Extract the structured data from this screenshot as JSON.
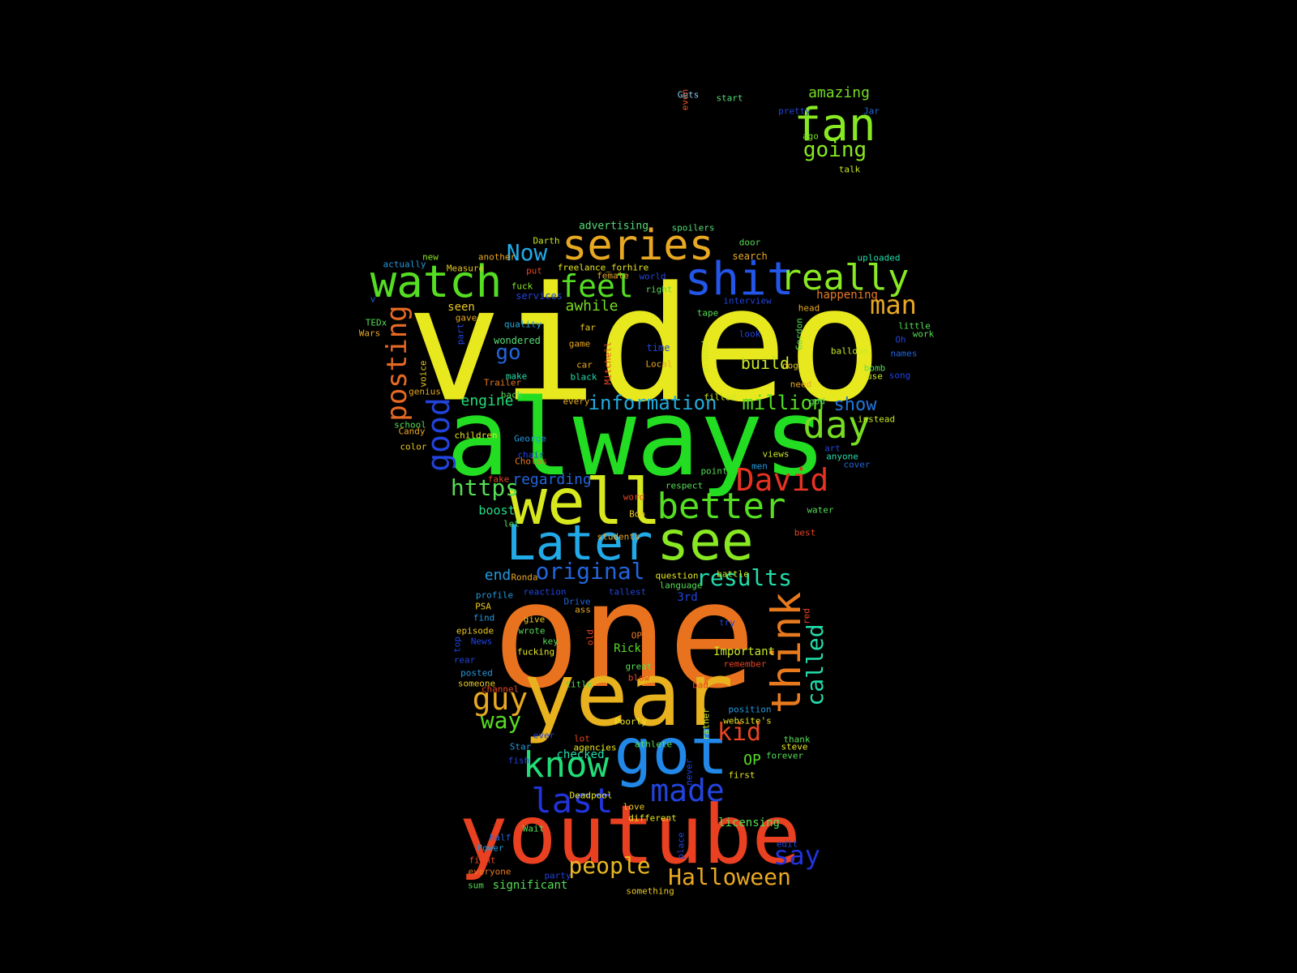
{
  "word_cloud": {
    "words": [
      {
        "text": "video",
        "color": "#e8e81e"
      },
      {
        "text": "always",
        "color": "#22dd22"
      },
      {
        "text": "one",
        "color": "#e8721e"
      },
      {
        "text": "year",
        "color": "#e8b21e"
      },
      {
        "text": "youtube",
        "color": "#e84020"
      },
      {
        "text": "got",
        "color": "#2288e8"
      },
      {
        "text": "well",
        "color": "#d8e81e"
      },
      {
        "text": "Later",
        "color": "#22aae8"
      },
      {
        "text": "see",
        "color": "#88e822"
      },
      {
        "text": "series",
        "color": "#e8a822"
      },
      {
        "text": "shit",
        "color": "#2255e8"
      },
      {
        "text": "really",
        "color": "#88e822"
      },
      {
        "text": "watch",
        "color": "#55dd22"
      },
      {
        "text": "fan",
        "color": "#88e822"
      },
      {
        "text": "think",
        "color": "#e87a1e"
      },
      {
        "text": "know",
        "color": "#22dd77"
      },
      {
        "text": "better",
        "color": "#55dd22"
      },
      {
        "text": "David",
        "color": "#e83322"
      },
      {
        "text": "day",
        "color": "#77dd22"
      },
      {
        "text": "good",
        "color": "#2244dd"
      },
      {
        "text": "last",
        "color": "#2233dd"
      },
      {
        "text": "made",
        "color": "#2244dd"
      },
      {
        "text": "guy",
        "color": "#e8a822"
      },
      {
        "text": "posting",
        "color": "#e86a22"
      },
      {
        "text": "feel",
        "color": "#55dd22"
      },
      {
        "text": "man",
        "color": "#e8a822"
      },
      {
        "text": "Halloween",
        "color": "#e8a822"
      },
      {
        "text": "people",
        "color": "#e8b822"
      },
      {
        "text": "say",
        "color": "#2233dd"
      },
      {
        "text": "kid",
        "color": "#e84422"
      },
      {
        "text": "called",
        "color": "#22ddaa"
      },
      {
        "text": "original",
        "color": "#2266dd"
      },
      {
        "text": "results",
        "color": "#22ddaa"
      },
      {
        "text": "information",
        "color": "#22aadd"
      },
      {
        "text": "million",
        "color": "#55dd22"
      },
      {
        "text": "Now",
        "color": "#22aae8"
      },
      {
        "text": "https",
        "color": "#55dd55"
      },
      {
        "text": "way",
        "color": "#55dd22"
      },
      {
        "text": "going",
        "color": "#88e822"
      },
      {
        "text": "amazing",
        "color": "#77dd22"
      },
      {
        "text": "show",
        "color": "#2277dd"
      },
      {
        "text": "go",
        "color": "#2266dd"
      },
      {
        "text": "awhile",
        "color": "#77dd22"
      },
      {
        "text": "engine",
        "color": "#22dd77"
      },
      {
        "text": "regarding",
        "color": "#2266dd"
      },
      {
        "text": "build",
        "color": "#c8e822"
      },
      {
        "text": "boost",
        "color": "#22dd88"
      },
      {
        "text": "end",
        "color": "#2299dd"
      },
      {
        "text": "OP",
        "color": "#55dd22"
      },
      {
        "text": "checked",
        "color": "#22ddaa"
      },
      {
        "text": "Rick",
        "color": "#55dd22"
      },
      {
        "text": "Important",
        "color": "#c8e822"
      },
      {
        "text": "licensing",
        "color": "#55dd55"
      },
      {
        "text": "significant",
        "color": "#55dd55"
      },
      {
        "text": "happening",
        "color": "#e87a22"
      },
      {
        "text": "seen",
        "color": "#e8c822"
      },
      {
        "text": "wondered",
        "color": "#55dd77"
      },
      {
        "text": "advertising",
        "color": "#55dd77"
      },
      {
        "text": "3rd",
        "color": "#2244dd"
      },
      {
        "text": "Gets",
        "color": "#88ccee"
      },
      {
        "text": "start",
        "color": "#55dd77"
      },
      {
        "text": "even",
        "color": "#e85522"
      },
      {
        "text": "pretty",
        "color": "#2244dd"
      },
      {
        "text": "Jar",
        "color": "#2266dd"
      },
      {
        "text": "ago",
        "color": "#77dd22"
      },
      {
        "text": "talk",
        "color": "#c8e822"
      },
      {
        "text": "spoilers",
        "color": "#55dd77"
      },
      {
        "text": "Darth",
        "color": "#c8e822"
      },
      {
        "text": "door",
        "color": "#55dd55"
      },
      {
        "text": "uploaded",
        "color": "#22ddaa"
      },
      {
        "text": "search",
        "color": "#e8a822"
      },
      {
        "text": "another",
        "color": "#e8a822"
      },
      {
        "text": "new",
        "color": "#88e822"
      },
      {
        "text": "actually",
        "color": "#2299dd"
      },
      {
        "text": "Measure",
        "color": "#e8c822"
      },
      {
        "text": "freelance_forhire",
        "color": "#e8e822"
      },
      {
        "text": "put",
        "color": "#e84422"
      },
      {
        "text": "female",
        "color": "#e8a822"
      },
      {
        "text": "world",
        "color": "#2244dd"
      },
      {
        "text": "fuck",
        "color": "#88e822"
      },
      {
        "text": "services",
        "color": "#2244dd"
      },
      {
        "text": "right",
        "color": "#55dd55"
      },
      {
        "text": "interview",
        "color": "#2244dd"
      },
      {
        "text": "v",
        "color": "#2266dd"
      },
      {
        "text": "TEDx",
        "color": "#55dd55"
      },
      {
        "text": "Wars",
        "color": "#e8a822"
      },
      {
        "text": "gave",
        "color": "#e8a822"
      },
      {
        "text": "quality",
        "color": "#22aadd"
      },
      {
        "text": "part",
        "color": "#2244dd"
      },
      {
        "text": "tape",
        "color": "#55dd55"
      },
      {
        "text": "head",
        "color": "#e8a822"
      },
      {
        "text": "little",
        "color": "#55dd55"
      },
      {
        "text": "work",
        "color": "#55dd55"
      },
      {
        "text": "far",
        "color": "#e8c822"
      },
      {
        "text": "game",
        "color": "#e8a822"
      },
      {
        "text": "look",
        "color": "#2244dd"
      },
      {
        "text": "Gordon",
        "color": "#55dd55"
      },
      {
        "text": "Oh",
        "color": "#2244dd"
      },
      {
        "text": "time",
        "color": "#2244dd"
      },
      {
        "text": "around",
        "color": "#c8e822"
      },
      {
        "text": "balloon",
        "color": "#c8e822"
      },
      {
        "text": "names",
        "color": "#2266dd"
      },
      {
        "text": "Mitchell",
        "color": "#e84422"
      },
      {
        "text": "car",
        "color": "#e8a822"
      },
      {
        "text": "Local",
        "color": "#e8a822"
      },
      {
        "text": "dog",
        "color": "#e8c822"
      },
      {
        "text": "bomb",
        "color": "#55dd55"
      },
      {
        "text": "use",
        "color": "#c8e822"
      },
      {
        "text": "song",
        "color": "#2244dd"
      },
      {
        "text": "voice",
        "color": "#e8c822"
      },
      {
        "text": "make",
        "color": "#22ddaa"
      },
      {
        "text": "black",
        "color": "#22ddaa"
      },
      {
        "text": "need",
        "color": "#e8a822"
      },
      {
        "text": "Trailer",
        "color": "#e87a22"
      },
      {
        "text": "genius",
        "color": "#e8a822"
      },
      {
        "text": "back",
        "color": "#55dd55"
      },
      {
        "text": "every",
        "color": "#e8a822"
      },
      {
        "text": "filled",
        "color": "#c8e822"
      },
      {
        "text": "god",
        "color": "#55dd55"
      },
      {
        "text": "instead",
        "color": "#c8e822"
      },
      {
        "text": "school",
        "color": "#55dd55"
      },
      {
        "text": "Candy",
        "color": "#e8a822"
      },
      {
        "text": "children",
        "color": "#e8e822"
      },
      {
        "text": "George",
        "color": "#2299dd"
      },
      {
        "text": "art",
        "color": "#2244dd"
      },
      {
        "text": "anyone",
        "color": "#22ddaa"
      },
      {
        "text": "color",
        "color": "#e8c822"
      },
      {
        "text": "chair",
        "color": "#2244dd"
      },
      {
        "text": "views",
        "color": "#c8e822"
      },
      {
        "text": "Cholos",
        "color": "#e87a22"
      },
      {
        "text": "cover",
        "color": "#2266dd"
      },
      {
        "text": "men",
        "color": "#2299dd"
      },
      {
        "text": "point",
        "color": "#55dd55"
      },
      {
        "text": "fake",
        "color": "#e84422"
      },
      {
        "text": "respect",
        "color": "#55dd55"
      },
      {
        "text": "word",
        "color": "#e84422"
      },
      {
        "text": "water",
        "color": "#55dd55"
      },
      {
        "text": "let",
        "color": "#55dd55"
      },
      {
        "text": "Bob",
        "color": "#e8c822"
      },
      {
        "text": "best",
        "color": "#e84422"
      },
      {
        "text": "students",
        "color": "#e8a822"
      },
      {
        "text": "Ronda",
        "color": "#e8a822"
      },
      {
        "text": "question",
        "color": "#e8e822"
      },
      {
        "text": "battle",
        "color": "#c8e822"
      },
      {
        "text": "language",
        "color": "#55dd55"
      },
      {
        "text": "profile",
        "color": "#2299dd"
      },
      {
        "text": "reaction",
        "color": "#2244dd"
      },
      {
        "text": "tallest",
        "color": "#2244dd"
      },
      {
        "text": "PSA",
        "color": "#e8c822"
      },
      {
        "text": "Drive",
        "color": "#2266dd"
      },
      {
        "text": "ass",
        "color": "#e8a822"
      },
      {
        "text": "red",
        "color": "#e84422"
      },
      {
        "text": "find",
        "color": "#2299dd"
      },
      {
        "text": "give",
        "color": "#e8c822"
      },
      {
        "text": "try",
        "color": "#2244dd"
      },
      {
        "text": "episode",
        "color": "#e8c822"
      },
      {
        "text": "wrote",
        "color": "#55dd55"
      },
      {
        "text": "old",
        "color": "#e84422"
      },
      {
        "text": "OP's",
        "color": "#e87a22"
      },
      {
        "text": "top",
        "color": "#2244dd"
      },
      {
        "text": "News",
        "color": "#2244dd"
      },
      {
        "text": "key",
        "color": "#55dd55"
      },
      {
        "text": "fucking",
        "color": "#e8e822"
      },
      {
        "text": "rear",
        "color": "#2244dd"
      },
      {
        "text": "great",
        "color": "#55dd55"
      },
      {
        "text": "remember",
        "color": "#e84422"
      },
      {
        "text": "posted",
        "color": "#2299dd"
      },
      {
        "text": "blow",
        "color": "#e84422"
      },
      {
        "text": "someone",
        "color": "#e8c822"
      },
      {
        "text": "channel",
        "color": "#e84422"
      },
      {
        "text": "title",
        "color": "#55dd55"
      },
      {
        "text": "bad",
        "color": "#e84422"
      },
      {
        "text": "rather",
        "color": "#c8e822"
      },
      {
        "text": "position",
        "color": "#2299dd"
      },
      {
        "text": "website's",
        "color": "#e8e822"
      },
      {
        "text": "Poorly",
        "color": "#e8e822"
      },
      {
        "text": "ever",
        "color": "#2244dd"
      },
      {
        "text": "lot",
        "color": "#e84422"
      },
      {
        "text": "thank",
        "color": "#55dd55"
      },
      {
        "text": "steve",
        "color": "#e8e822"
      },
      {
        "text": "Star",
        "color": "#2299dd"
      },
      {
        "text": "agencies",
        "color": "#e8e822"
      },
      {
        "text": "athlete",
        "color": "#55dd55"
      },
      {
        "text": "forever",
        "color": "#55dd55"
      },
      {
        "text": "fish",
        "color": "#2244dd"
      },
      {
        "text": "never",
        "color": "#2244dd"
      },
      {
        "text": "first",
        "color": "#e8e822"
      },
      {
        "text": "Deadpool",
        "color": "#e8e822"
      },
      {
        "text": "love",
        "color": "#e8c822"
      },
      {
        "text": "different",
        "color": "#e8e822"
      },
      {
        "text": "Wait",
        "color": "#55dd55"
      },
      {
        "text": "half",
        "color": "#2266dd"
      },
      {
        "text": "edit",
        "color": "#2244dd"
      },
      {
        "text": "place",
        "color": "#2244dd"
      },
      {
        "text": "Power",
        "color": "#2299dd"
      },
      {
        "text": "fight",
        "color": "#e84422"
      },
      {
        "text": "everyone",
        "color": "#e87a22"
      },
      {
        "text": "party",
        "color": "#2244dd"
      },
      {
        "text": "sum",
        "color": "#55dd55"
      },
      {
        "text": "something",
        "color": "#e8c822"
      }
    ]
  }
}
